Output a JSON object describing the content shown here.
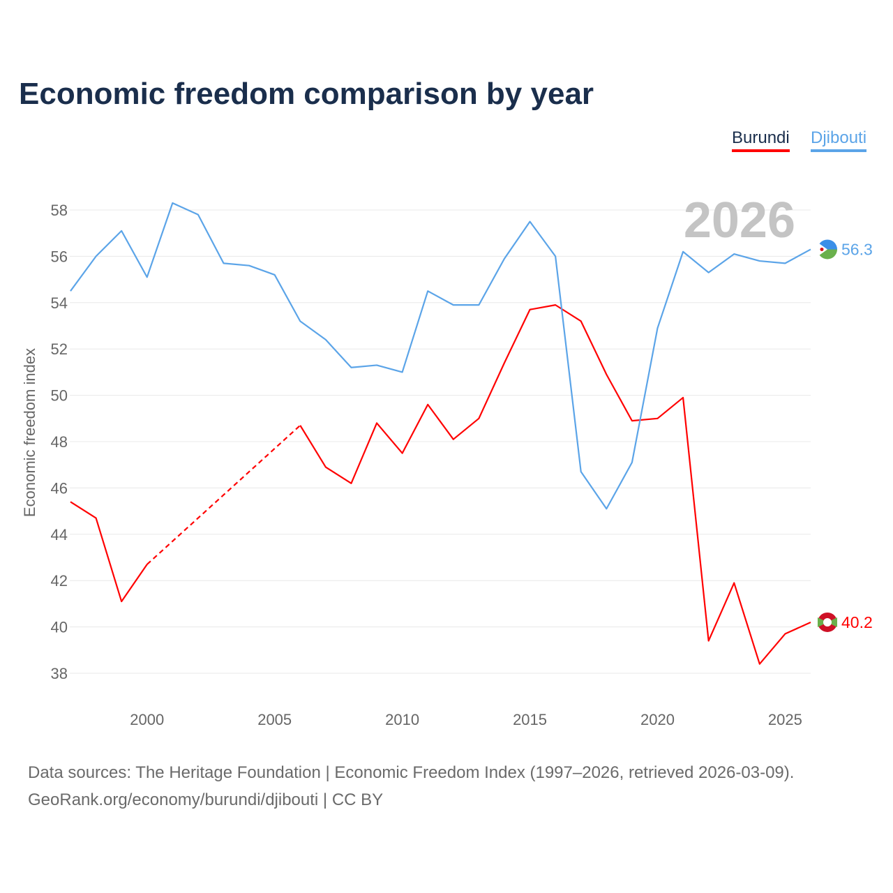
{
  "chart_data": {
    "type": "line",
    "title": "Economic freedom comparison by year",
    "xlabel": "",
    "ylabel": "Economic freedom index",
    "xlim": [
      1997,
      2026
    ],
    "ylim": [
      37,
      59
    ],
    "yticks": [
      38,
      40,
      42,
      44,
      46,
      48,
      50,
      52,
      54,
      56,
      58
    ],
    "xticks": [
      2000,
      2005,
      2010,
      2015,
      2020,
      2025
    ],
    "grid": true,
    "legend_position": "top-right",
    "year_watermark": "2026",
    "x": [
      1997,
      1998,
      1999,
      2000,
      2001,
      2002,
      2003,
      2004,
      2005,
      2006,
      2007,
      2008,
      2009,
      2010,
      2011,
      2012,
      2013,
      2014,
      2015,
      2016,
      2017,
      2018,
      2019,
      2020,
      2021,
      2022,
      2023,
      2024,
      2025,
      2026
    ],
    "series": [
      {
        "name": "Burundi",
        "color": "#ff0000",
        "end_label": "40.2",
        "values": [
          45.4,
          44.7,
          41.1,
          42.7,
          null,
          null,
          null,
          null,
          null,
          48.7,
          46.9,
          46.2,
          48.8,
          47.5,
          49.6,
          48.1,
          49.0,
          51.4,
          53.7,
          53.9,
          53.2,
          50.9,
          48.9,
          49.0,
          49.9,
          39.4,
          41.9,
          38.4,
          39.7,
          40.2
        ]
      },
      {
        "name": "Djibouti",
        "color": "#5ba4e8",
        "end_label": "56.3",
        "values": [
          54.5,
          56.0,
          57.1,
          55.1,
          58.3,
          57.8,
          55.7,
          55.6,
          55.2,
          53.2,
          52.4,
          51.2,
          51.3,
          51.0,
          54.5,
          53.9,
          53.9,
          55.9,
          57.5,
          56.0,
          46.7,
          45.1,
          47.1,
          52.9,
          56.2,
          55.3,
          56.1,
          55.8,
          55.7,
          56.3
        ]
      }
    ]
  },
  "footer": {
    "line1": "Data sources: The Heritage Foundation | Economic Freedom Index (1997–2026, retrieved 2026-03-09).",
    "line2": "GeoRank.org/economy/burundi/djibouti | CC BY"
  }
}
